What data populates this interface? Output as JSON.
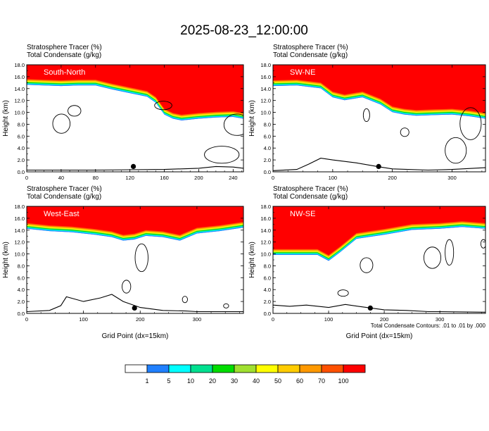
{
  "title": "2025-08-23_12:00:00",
  "colors": {
    "scale": [
      "#ffffff",
      "#2080ff",
      "#00ffff",
      "#00e090",
      "#00dd00",
      "#a0e030",
      "#ffff00",
      "#ffcc00",
      "#ff9900",
      "#ff5000",
      "#ff0000"
    ],
    "contour": "#000000",
    "marker": "#000000"
  },
  "colorbar": {
    "labels": [
      "1",
      "5",
      "10",
      "20",
      "30",
      "40",
      "50",
      "60",
      "70",
      "100"
    ]
  },
  "footnote": "Total Condensate Contours: .01 to .01 by .000",
  "chart_data": [
    {
      "type": "heatmap",
      "panel_title": "South-North",
      "title": "Stratosphere Tracer   (%)",
      "subtitle": "Total Condensate   (g/kg)",
      "xlabel": "",
      "ylabel": "Height (km)",
      "xlim": [
        0,
        252
      ],
      "ylim": [
        0,
        18
      ],
      "xticks": [
        "0",
        "40",
        "80",
        "120",
        "160",
        "200",
        "240"
      ],
      "yticks": [
        "0.0",
        "2.0",
        "4.0",
        "6.0",
        "8.0",
        "10.0",
        "12.0",
        "14.0",
        "16.0",
        "18.0"
      ],
      "tracer_base_km": {
        "x": [
          0,
          20,
          40,
          60,
          80,
          100,
          120,
          140,
          150,
          160,
          170,
          180,
          200,
          220,
          240,
          252
        ],
        "y": [
          15.6,
          15.5,
          15.4,
          15.5,
          15.5,
          14.8,
          14.2,
          13.6,
          12.6,
          10.6,
          9.9,
          9.6,
          9.9,
          10.1,
          10.2,
          9.9
        ]
      },
      "terrain_km": {
        "x": [
          0,
          40,
          80,
          120,
          160,
          200,
          220,
          240,
          252
        ],
        "y": [
          0.3,
          0.3,
          0.3,
          0.35,
          0.4,
          0.6,
          0.9,
          0.8,
          0.6
        ]
      },
      "marker": {
        "x": 124,
        "y": 0.9
      }
    },
    {
      "type": "heatmap",
      "panel_title": "SW-NE",
      "title": "Stratosphere Tracer   (%)",
      "subtitle": "Total Condensate   (g/kg)",
      "xlabel": "",
      "ylabel": "Height (km)",
      "xlim": [
        0,
        356
      ],
      "ylim": [
        0,
        18
      ],
      "xticks": [
        "0",
        "100",
        "200",
        "300"
      ],
      "yticks": [
        "0.0",
        "2.0",
        "4.0",
        "6.0",
        "8.0",
        "10.0",
        "12.0",
        "14.0",
        "16.0",
        "18.0"
      ],
      "tracer_base_km": {
        "x": [
          0,
          40,
          80,
          100,
          120,
          150,
          180,
          200,
          220,
          240,
          270,
          300,
          330,
          356
        ],
        "y": [
          15.4,
          15.5,
          15.0,
          13.5,
          13.0,
          13.5,
          12.3,
          11.0,
          10.6,
          10.4,
          10.5,
          10.6,
          10.3,
          9.9
        ]
      },
      "terrain_km": {
        "x": [
          0,
          40,
          60,
          80,
          100,
          140,
          180,
          200,
          260,
          300,
          356
        ],
        "y": [
          0.2,
          0.4,
          1.3,
          2.3,
          2.0,
          1.5,
          0.8,
          0.5,
          0.3,
          0.4,
          0.7
        ]
      },
      "marker": {
        "x": 177,
        "y": 0.9
      }
    },
    {
      "type": "heatmap",
      "panel_title": "West-East",
      "title": "Stratosphere Tracer   (%)",
      "subtitle": "Total Condensate   (g/kg)",
      "xlabel": "Grid Point (dx=15km)",
      "ylabel": "Height (km)",
      "xlim": [
        0,
        382
      ],
      "ylim": [
        0,
        18
      ],
      "xticks": [
        "0",
        "100",
        "200",
        "300"
      ],
      "yticks": [
        "0.0",
        "2.0",
        "4.0",
        "6.0",
        "8.0",
        "10.0",
        "12.0",
        "14.0",
        "16.0",
        "18.0"
      ],
      "tracer_base_km": {
        "x": [
          0,
          40,
          80,
          120,
          150,
          170,
          190,
          210,
          240,
          270,
          300,
          340,
          382
        ],
        "y": [
          15.2,
          14.8,
          14.6,
          14.2,
          13.8,
          13.2,
          13.4,
          14.0,
          13.8,
          13.2,
          14.4,
          14.8,
          15.4
        ]
      },
      "terrain_km": {
        "x": [
          0,
          40,
          60,
          70,
          100,
          130,
          150,
          170,
          200,
          240,
          280,
          300,
          382
        ],
        "y": [
          0.3,
          0.5,
          1.3,
          2.8,
          2.0,
          2.6,
          3.2,
          2.0,
          1.0,
          0.5,
          0.4,
          0.3,
          0.3
        ]
      },
      "marker": {
        "x": 190,
        "y": 0.9
      }
    },
    {
      "type": "heatmap",
      "panel_title": "NW-SE",
      "title": "Stratosphere Tracer   (%)",
      "subtitle": "Total Condensate   (g/kg)",
      "xlabel": "Grid Point (dx=15km)",
      "ylabel": "Height (km)",
      "xlim": [
        0,
        382
      ],
      "ylim": [
        0,
        18
      ],
      "xticks": [
        "0",
        "100",
        "200",
        "300"
      ],
      "yticks": [
        "0.0",
        "2.0",
        "4.0",
        "6.0",
        "8.0",
        "10.0",
        "12.0",
        "14.0",
        "16.0",
        "18.0"
      ],
      "tracer_base_km": {
        "x": [
          0,
          40,
          80,
          100,
          120,
          150,
          200,
          250,
          300,
          340,
          382
        ],
        "y": [
          10.8,
          10.8,
          10.8,
          9.8,
          11.2,
          13.5,
          14.2,
          15.0,
          15.2,
          15.5,
          15.2
        ]
      },
      "terrain_km": {
        "x": [
          0,
          30,
          60,
          100,
          130,
          160,
          200,
          240,
          280,
          300,
          382
        ],
        "y": [
          1.4,
          1.2,
          1.4,
          1.0,
          1.5,
          1.1,
          0.6,
          0.5,
          0.3,
          0.3,
          0.2
        ]
      },
      "marker": {
        "x": 175,
        "y": 0.9
      }
    }
  ]
}
